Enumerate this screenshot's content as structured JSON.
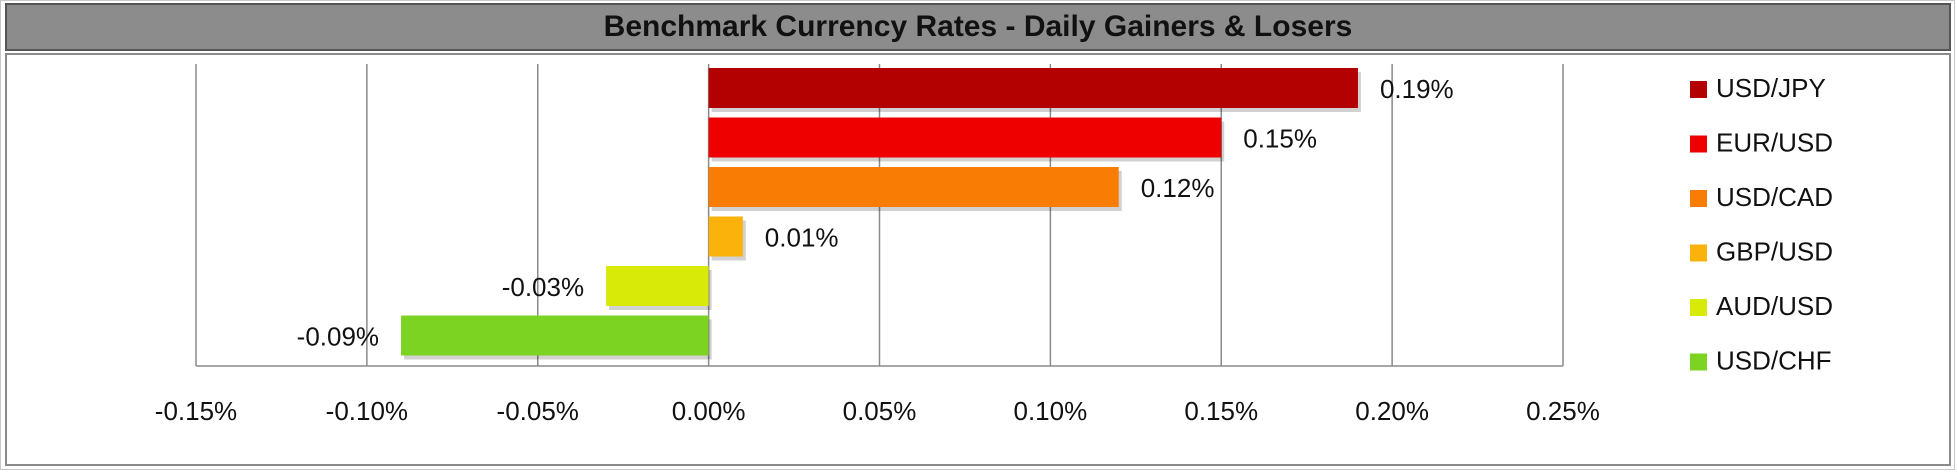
{
  "chart_data": {
    "type": "bar",
    "orientation": "horizontal",
    "title": "Benchmark Currency Rates - Daily Gainers & Losers",
    "categories": [
      "USD/JPY",
      "EUR/USD",
      "USD/CAD",
      "GBP/USD",
      "AUD/USD",
      "USD/CHF"
    ],
    "values": [
      0.19,
      0.15,
      0.12,
      0.01,
      -0.03,
      -0.09
    ],
    "value_labels": [
      "0.19%",
      "0.15%",
      "0.12%",
      "0.01%",
      "-0.03%",
      "-0.09%"
    ],
    "colors": [
      "#b30000",
      "#ee0000",
      "#f97c04",
      "#fbb20b",
      "#d8ea07",
      "#7dd321"
    ],
    "xlim": [
      -0.15,
      0.25
    ],
    "x_ticks": [
      -0.15,
      -0.1,
      -0.05,
      0.0,
      0.05,
      0.1,
      0.15,
      0.2,
      0.25
    ],
    "x_tick_labels": [
      "-0.15%",
      "-0.10%",
      "-0.05%",
      "0.00%",
      "0.05%",
      "0.10%",
      "0.15%",
      "0.20%",
      "0.25%"
    ],
    "grid": "vertical",
    "legend": {
      "position": "right",
      "entries": [
        "USD/JPY",
        "EUR/USD",
        "USD/CAD",
        "GBP/USD",
        "AUD/USD",
        "USD/CHF"
      ]
    },
    "xlabel": "",
    "ylabel": ""
  }
}
